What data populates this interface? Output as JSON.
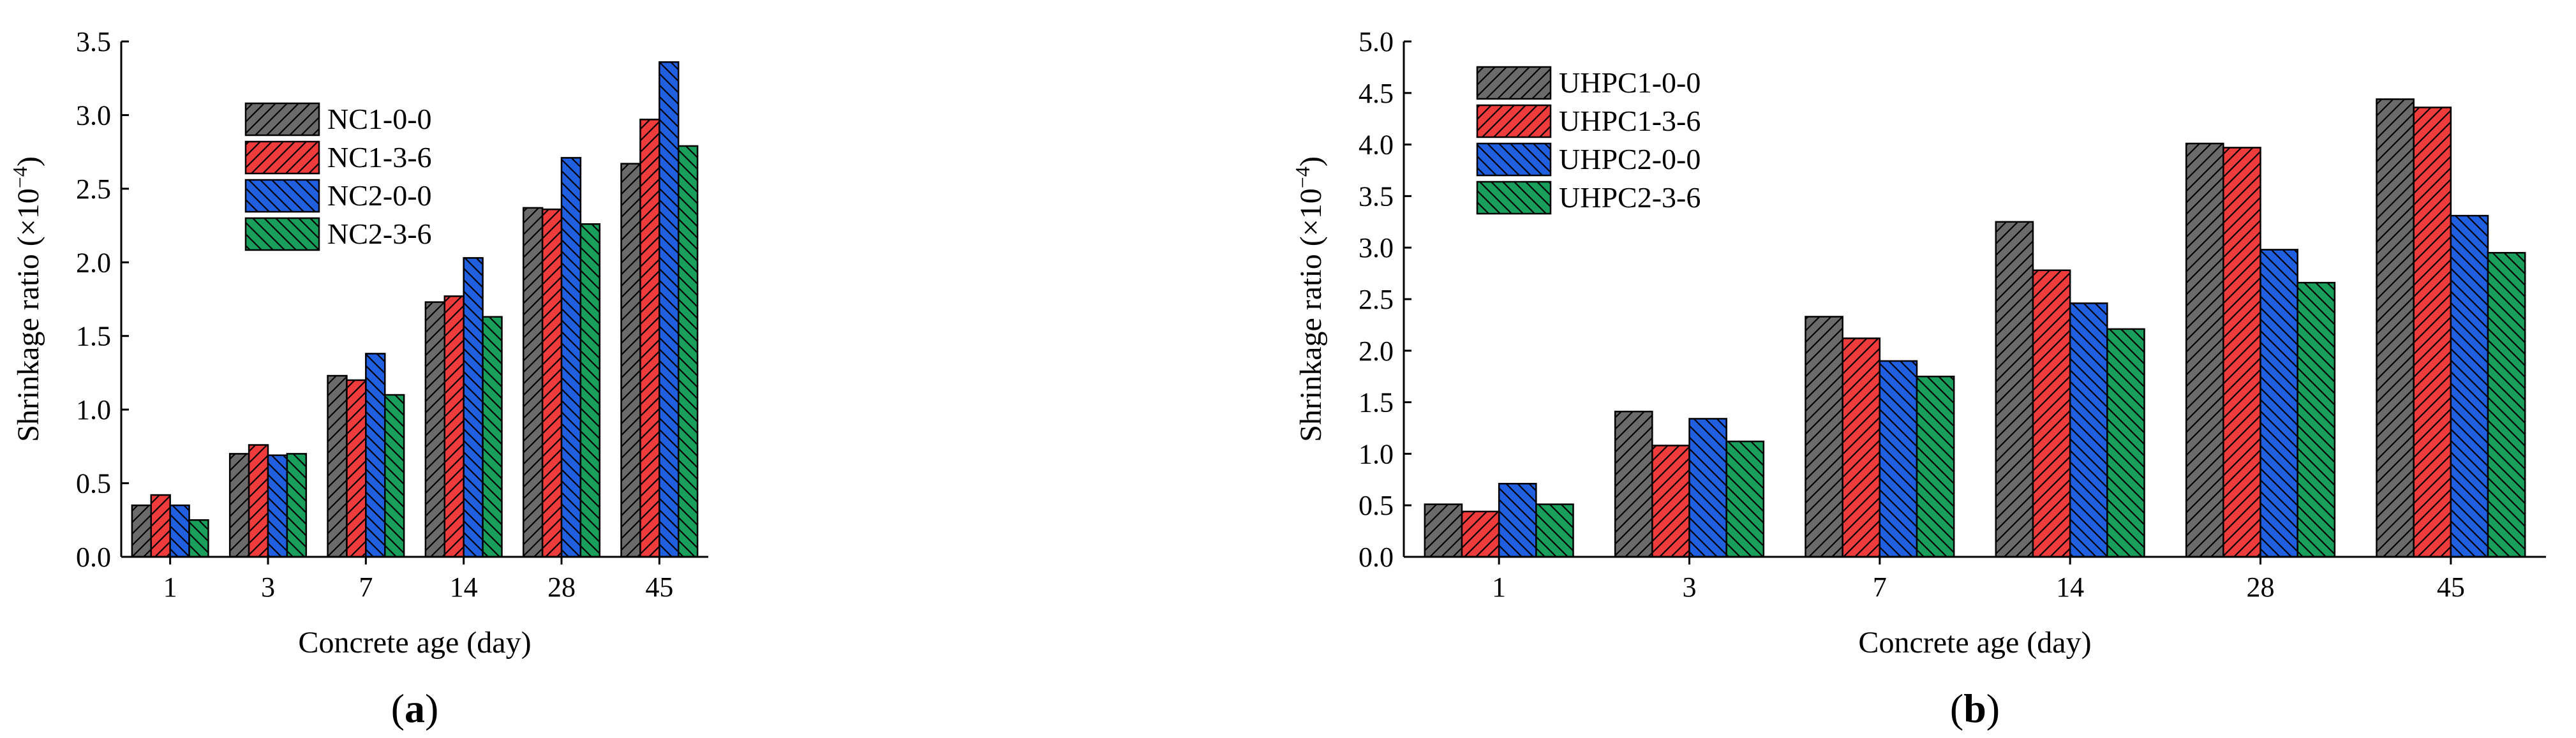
{
  "colors": {
    "NC1-0-0": "#6b6b6b",
    "NC1-3-6": "#ee3b3b",
    "NC2-0-0": "#1f5fe0",
    "NC2-3-6": "#1a9e5c",
    "UHPC1-0-0": "#6b6b6b",
    "UHPC1-3-6": "#ee3b3b",
    "UHPC2-0-0": "#1f5fe0",
    "UHPC2-3-6": "#1a9e5c"
  },
  "chart_data": [
    {
      "type": "bar",
      "panel_label": "(a)",
      "xlabel": "Concrete age (day)",
      "ylabel": "Shrinkage ratio (×10",
      "ylabel_exp": "−4",
      "ylabel_close": ")",
      "ylim": [
        0,
        3.5
      ],
      "yticks": [
        "0.0",
        "0.5",
        "1.0",
        "1.5",
        "2.0",
        "2.5",
        "3.0",
        "3.5"
      ],
      "categories": [
        "1",
        "3",
        "7",
        "14",
        "28",
        "45"
      ],
      "legend_position": "top-left",
      "series": [
        {
          "name": "NC1-0-0",
          "values": [
            0.35,
            0.7,
            1.23,
            1.73,
            2.37,
            2.67
          ]
        },
        {
          "name": "NC1-3-6",
          "values": [
            0.42,
            0.76,
            1.2,
            1.77,
            2.36,
            2.97
          ]
        },
        {
          "name": "NC2-0-0",
          "values": [
            0.35,
            0.69,
            1.38,
            2.03,
            2.71,
            3.36
          ]
        },
        {
          "name": "NC2-3-6",
          "values": [
            0.25,
            0.7,
            1.1,
            1.63,
            2.26,
            2.79
          ]
        }
      ]
    },
    {
      "type": "bar",
      "panel_label": "(b)",
      "xlabel": "Concrete age (day)",
      "ylabel": "Shrinkage ratio (×10",
      "ylabel_exp": "−4",
      "ylabel_close": ")",
      "ylim": [
        0,
        5.0
      ],
      "yticks": [
        "0.0",
        "0.5",
        "1.0",
        "1.5",
        "2.0",
        "2.5",
        "3.0",
        "3.5",
        "4.0",
        "4.5",
        "5.0"
      ],
      "categories": [
        "1",
        "3",
        "7",
        "14",
        "28",
        "45"
      ],
      "legend_position": "top-left",
      "series": [
        {
          "name": "UHPC1-0-0",
          "values": [
            0.51,
            1.41,
            2.33,
            3.25,
            4.01,
            4.44
          ]
        },
        {
          "name": "UHPC1-3-6",
          "values": [
            0.44,
            1.08,
            2.12,
            2.78,
            3.97,
            4.36
          ]
        },
        {
          "name": "UHPC2-0-0",
          "values": [
            0.71,
            1.34,
            1.9,
            2.46,
            2.98,
            3.31
          ]
        },
        {
          "name": "UHPC2-3-6",
          "values": [
            0.51,
            1.12,
            1.75,
            2.21,
            2.66,
            2.95
          ]
        }
      ]
    }
  ]
}
